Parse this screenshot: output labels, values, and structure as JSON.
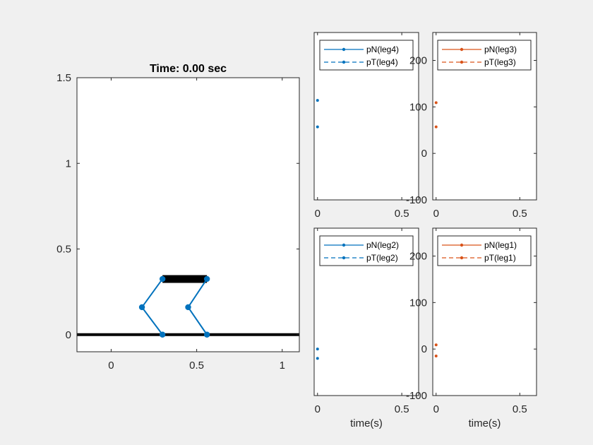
{
  "figure": {
    "background": "#f0f0f0",
    "colors": {
      "blue": "#0072bd",
      "orange": "#d95319",
      "ink": "#262626",
      "black": "#000000"
    }
  },
  "chart_data": [
    {
      "name": "animation",
      "type": "line",
      "title": "Time: 0.00 sec",
      "xlabel": "",
      "ylabel": "",
      "xlim": [
        -0.2,
        1.1
      ],
      "ylim": [
        -0.1,
        1.5
      ],
      "xticks": [
        "0",
        "0.5",
        "1"
      ],
      "xtick_values": [
        0,
        0.5,
        1
      ],
      "yticks": [
        "0",
        "0.5",
        "1",
        "1.5"
      ],
      "ytick_values": [
        0,
        0.5,
        1,
        1.5
      ],
      "grid": false,
      "ground": {
        "x": [
          -0.2,
          1.1
        ],
        "y": [
          0,
          0
        ],
        "color": "#000000"
      },
      "body": {
        "x": [
          0.3,
          0.56
        ],
        "y": [
          0.325,
          0.325
        ],
        "color": "#000000"
      },
      "legs": [
        {
          "x": [
            0.3,
            0.18,
            0.3
          ],
          "y": [
            0.325,
            0.16,
            0.0
          ],
          "color": "#0072bd"
        },
        {
          "x": [
            0.56,
            0.45,
            0.56
          ],
          "y": [
            0.325,
            0.16,
            0.0
          ],
          "color": "#0072bd"
        }
      ]
    },
    {
      "name": "leg4",
      "type": "line",
      "xlabel": "",
      "xlim": [
        -0.02,
        0.6
      ],
      "ylim": [
        -100,
        260
      ],
      "xticks": [
        "0",
        "0.5"
      ],
      "xtick_values": [
        0,
        0.5
      ],
      "yticks": [],
      "ytick_values": [],
      "legend_position": "top-right",
      "series": [
        {
          "name": "pN(leg4)",
          "style": "solid",
          "color": "#0072bd",
          "x": [
            0
          ],
          "y": [
            114
          ]
        },
        {
          "name": "pT(leg4)",
          "style": "dashed",
          "color": "#0072bd",
          "x": [
            0
          ],
          "y": [
            57
          ]
        }
      ]
    },
    {
      "name": "leg3",
      "type": "line",
      "xlabel": "",
      "xlim": [
        -0.02,
        0.6
      ],
      "ylim": [
        -100,
        260
      ],
      "xticks": [
        "0",
        "0.5"
      ],
      "xtick_values": [
        0,
        0.5
      ],
      "yticks": [
        "-100",
        "0",
        "100",
        "200"
      ],
      "ytick_values": [
        -100,
        0,
        100,
        200
      ],
      "legend_position": "top-right",
      "series": [
        {
          "name": "pN(leg3)",
          "style": "solid",
          "color": "#d95319",
          "x": [
            0
          ],
          "y": [
            109
          ]
        },
        {
          "name": "pT(leg3)",
          "style": "dashed",
          "color": "#d95319",
          "x": [
            0
          ],
          "y": [
            57
          ]
        }
      ]
    },
    {
      "name": "leg2",
      "type": "line",
      "xlabel": "time(s)",
      "xlim": [
        -0.02,
        0.6
      ],
      "ylim": [
        -100,
        260
      ],
      "xticks": [
        "0",
        "0.5"
      ],
      "xtick_values": [
        0,
        0.5
      ],
      "yticks": [],
      "ytick_values": [],
      "legend_position": "top-right",
      "series": [
        {
          "name": "pN(leg2)",
          "style": "solid",
          "color": "#0072bd",
          "x": [
            0
          ],
          "y": [
            0
          ]
        },
        {
          "name": "pT(leg2)",
          "style": "dashed",
          "color": "#0072bd",
          "x": [
            0
          ],
          "y": [
            -20
          ]
        }
      ]
    },
    {
      "name": "leg1",
      "type": "line",
      "xlabel": "time(s)",
      "xlim": [
        -0.02,
        0.6
      ],
      "ylim": [
        -100,
        260
      ],
      "xticks": [
        "0",
        "0.5"
      ],
      "xtick_values": [
        0,
        0.5
      ],
      "yticks": [
        "-100",
        "0",
        "100",
        "200"
      ],
      "ytick_values": [
        -100,
        0,
        100,
        200
      ],
      "legend_position": "top-right",
      "series": [
        {
          "name": "pN(leg1)",
          "style": "solid",
          "color": "#d95319",
          "x": [
            0
          ],
          "y": [
            9
          ]
        },
        {
          "name": "pT(leg1)",
          "style": "dashed",
          "color": "#d95319",
          "x": [
            0
          ],
          "y": [
            -15
          ]
        }
      ]
    }
  ]
}
